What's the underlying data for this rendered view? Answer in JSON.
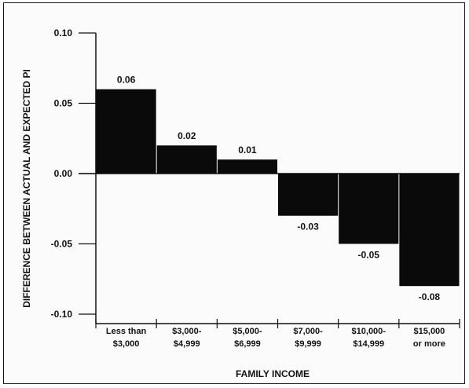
{
  "chart_data": {
    "type": "bar",
    "title": "",
    "xlabel": "FAMILY INCOME",
    "ylabel": "DIFFERENCE BETWEEN ACTUAL AND EXPECTED PI",
    "ylim": [
      -0.1,
      0.1
    ],
    "yticks": [
      "0.10",
      "0.05",
      "0.00",
      "-0.05",
      "-0.10"
    ],
    "ytick_values": [
      0.1,
      0.05,
      0.0,
      -0.05,
      -0.1
    ],
    "categories": [
      [
        "Less than",
        "$3,000"
      ],
      [
        "$3,000-",
        "$4,999"
      ],
      [
        "$5,000-",
        "$6,999"
      ],
      [
        "$7,000-",
        "$9,999"
      ],
      [
        "$10,000-",
        "$14,999"
      ],
      [
        "$15,000",
        "or more"
      ]
    ],
    "values": [
      0.06,
      0.02,
      0.01,
      -0.03,
      -0.05,
      -0.08
    ],
    "data_labels": [
      "0.06",
      "0.02",
      "0.01",
      "-0.03",
      "-0.05",
      "-0.08"
    ],
    "bar_color": "#0a0a0a",
    "grid": false,
    "legend": "none"
  }
}
